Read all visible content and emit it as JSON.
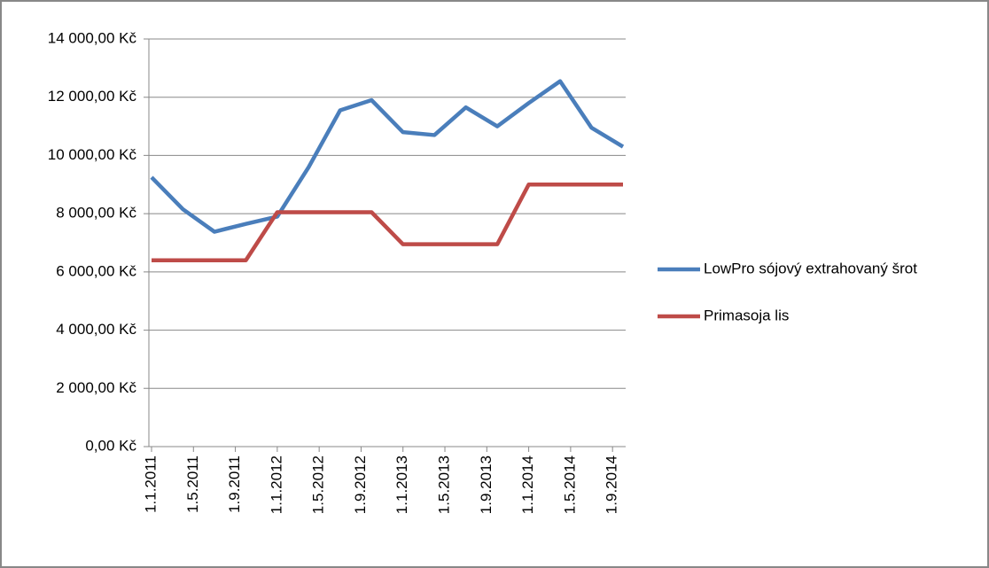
{
  "chart_data": {
    "type": "line",
    "x": [
      "1.1.2011",
      "1.4.2011",
      "1.7.2011",
      "1.10.2011",
      "1.1.2012",
      "1.4.2012",
      "1.7.2012",
      "1.10.2012",
      "1.1.2013",
      "1.4.2013",
      "1.7.2013",
      "1.10.2013",
      "1.1.2014",
      "1.4.2014",
      "1.7.2014",
      "1.10.2014"
    ],
    "series": [
      {
        "name": "LowPro sójový extrahovaný šrot",
        "color": "#4a7ebb",
        "values": [
          9250,
          8150,
          7380,
          7650,
          7900,
          9600,
          11550,
          11900,
          10800,
          10700,
          11650,
          11000,
          11800,
          12550,
          10950,
          10300
        ]
      },
      {
        "name": "Primasoja lis",
        "color": "#be4b48",
        "values": [
          6400,
          6400,
          6400,
          6400,
          8050,
          8050,
          8050,
          8050,
          6950,
          6950,
          6950,
          6950,
          9000,
          9000,
          9000,
          9000
        ]
      }
    ],
    "xlim": [
      "1.1.2011",
      "1.10.2014"
    ],
    "xticks": [
      "1.1.2011",
      "1.5.2011",
      "1.9.2011",
      "1.1.2012",
      "1.5.2012",
      "1.9.2012",
      "1.1.2013",
      "1.5.2013",
      "1.9.2013",
      "1.1.2014",
      "1.5.2014",
      "1.9.2014"
    ],
    "ylim": [
      0,
      14000
    ],
    "yticks": [
      {
        "value": 0,
        "label": "0,00 Kč"
      },
      {
        "value": 2000,
        "label": "2 000,00 Kč"
      },
      {
        "value": 4000,
        "label": "4 000,00 Kč"
      },
      {
        "value": 6000,
        "label": "6 000,00 Kč"
      },
      {
        "value": 8000,
        "label": "8 000,00 Kč"
      },
      {
        "value": 10000,
        "label": "10 000,00 Kč"
      },
      {
        "value": 12000,
        "label": "12 000,00 Kč"
      },
      {
        "value": 14000,
        "label": "14 000,00 Kč"
      }
    ],
    "grid": true,
    "legend": "right"
  }
}
